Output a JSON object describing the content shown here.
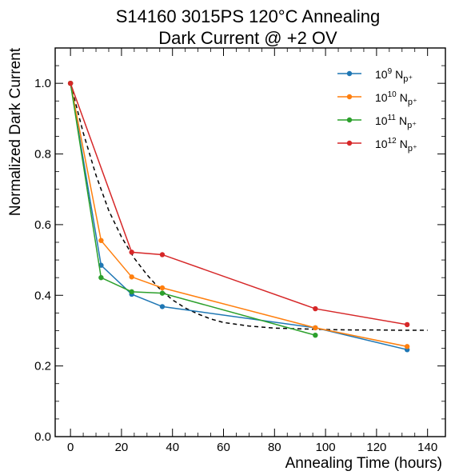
{
  "chart_data": {
    "type": "line",
    "title_line1": "S14160 3015PS 120°C Annealing",
    "title_line2": "Dark Current @ +2 OV",
    "xlabel": "Annealing Time (hours)",
    "ylabel": "Normalized Dark Current",
    "xlim": [
      -6,
      147
    ],
    "ylim": [
      0.0,
      1.1
    ],
    "xticks": [
      0,
      20,
      40,
      60,
      80,
      100,
      120,
      140
    ],
    "yticks": [
      0.0,
      0.2,
      0.4,
      0.6,
      0.8,
      1.0
    ],
    "xtick_labels": [
      "0",
      "20",
      "40",
      "60",
      "80",
      "100",
      "120",
      "140"
    ],
    "ytick_labels": [
      "0.0",
      "0.2",
      "0.4",
      "0.6",
      "0.8",
      "1.0"
    ],
    "grid": false,
    "legend_position": "top-right",
    "series": [
      {
        "name": "10^9 N_p+",
        "legend_base": "10",
        "legend_exp": "9",
        "legend_unit": "N",
        "legend_sub": "p⁺",
        "color": "#1f77b4",
        "x": [
          0,
          12,
          24,
          36,
          96,
          132
        ],
        "y": [
          1.0,
          0.485,
          0.403,
          0.368,
          0.308,
          0.246
        ]
      },
      {
        "name": "10^10 N_p+",
        "legend_base": "10",
        "legend_exp": "10",
        "legend_unit": "N",
        "legend_sub": "p⁺",
        "color": "#ff7f0e",
        "x": [
          0,
          12,
          24,
          36,
          96,
          132
        ],
        "y": [
          1.0,
          0.555,
          0.452,
          0.421,
          0.308,
          0.255
        ]
      },
      {
        "name": "10^11 N_p+",
        "legend_base": "10",
        "legend_exp": "11",
        "legend_unit": "N",
        "legend_sub": "p⁺",
        "color": "#2ca02c",
        "x": [
          0,
          12,
          24,
          36,
          96
        ],
        "y": [
          1.0,
          0.45,
          0.41,
          0.406,
          0.287
        ]
      },
      {
        "name": "10^12 N_p+",
        "legend_base": "10",
        "legend_exp": "12",
        "legend_unit": "N",
        "legend_sub": "p⁺",
        "color": "#d62728",
        "x": [
          0,
          24,
          36,
          96,
          132
        ],
        "y": [
          1.0,
          0.522,
          0.515,
          0.362,
          0.317
        ]
      }
    ],
    "fit_curve": {
      "style": "dashed",
      "color": "#000000",
      "x": [
        0,
        5,
        10,
        15,
        20,
        25,
        30,
        35,
        40,
        45,
        50,
        55,
        60,
        70,
        80,
        90,
        100,
        110,
        120,
        130,
        140
      ],
      "y": [
        1.0,
        0.86,
        0.74,
        0.64,
        0.565,
        0.505,
        0.458,
        0.418,
        0.387,
        0.364,
        0.347,
        0.333,
        0.323,
        0.313,
        0.307,
        0.305,
        0.303,
        0.302,
        0.302,
        0.301,
        0.301
      ]
    }
  }
}
